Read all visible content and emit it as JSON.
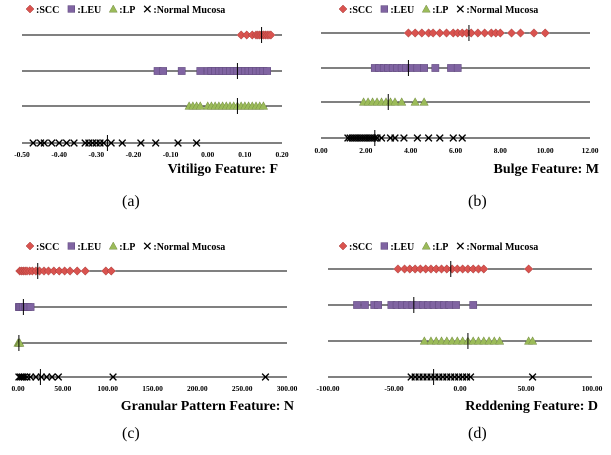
{
  "colors": {
    "SCC": "#d9534f",
    "LEU": "#8064a2",
    "LP": "#9bbb59",
    "Normal": "#000000"
  },
  "panels": [
    {
      "caption": "(a)"
    },
    {
      "caption": "(b)"
    },
    {
      "caption": "(c)"
    },
    {
      "caption": "(d)"
    }
  ],
  "chart_data": [
    {
      "type": "scatter",
      "title": "Vitiligo Feature: F",
      "xlim": [
        -0.5,
        0.2
      ],
      "ticks": [
        "-0.50",
        "-0.40",
        "-0.30",
        "-0.20",
        "-0.10",
        "0.00",
        "0.10",
        "0.20"
      ],
      "legend": [
        {
          "name": ":SCC",
          "marker": "diamond",
          "color": "#d9534f"
        },
        {
          "name": ":LEU",
          "marker": "square",
          "color": "#8064a2"
        },
        {
          "name": ":LP",
          "marker": "triangle",
          "color": "#9bbb59"
        },
        {
          "name": ":Normal Mucosa",
          "marker": "x",
          "color": "#000000"
        }
      ],
      "series": [
        {
          "name": "SCC",
          "marker": "diamond",
          "color": "#d9534f",
          "mean": 0.145,
          "values": [
            0.09,
            0.105,
            0.12,
            0.13,
            0.135,
            0.14,
            0.145,
            0.15,
            0.155,
            0.16,
            0.165,
            0.17
          ]
        },
        {
          "name": "LEU",
          "marker": "square",
          "color": "#8064a2",
          "mean": 0.08,
          "values": [
            -0.135,
            -0.12,
            -0.07,
            -0.02,
            0.0,
            0.01,
            0.02,
            0.03,
            0.04,
            0.05,
            0.06,
            0.07,
            0.08,
            0.09,
            0.1,
            0.11,
            0.12,
            0.13,
            0.14,
            0.15,
            0.16
          ]
        },
        {
          "name": "LP",
          "marker": "triangle",
          "color": "#9bbb59",
          "mean": 0.08,
          "values": [
            -0.05,
            -0.04,
            -0.03,
            -0.02,
            0.0,
            0.01,
            0.02,
            0.03,
            0.04,
            0.05,
            0.06,
            0.07,
            0.08,
            0.09,
            0.1,
            0.11,
            0.12,
            0.13,
            0.14,
            0.15
          ]
        },
        {
          "name": "Normal Mucosa",
          "marker": "x",
          "color": "#000000",
          "mean": -0.27,
          "values": [
            -0.47,
            -0.45,
            -0.44,
            -0.42,
            -0.4,
            -0.38,
            -0.36,
            -0.33,
            -0.32,
            -0.31,
            -0.3,
            -0.29,
            -0.28,
            -0.26,
            -0.23,
            -0.18,
            -0.14,
            -0.08,
            -0.03
          ]
        }
      ]
    },
    {
      "type": "scatter",
      "title": "Bulge Feature: M",
      "xlim": [
        0,
        12
      ],
      "ticks": [
        "0.00",
        "2.00",
        "4.00",
        "6.00",
        "8.00",
        "10.00",
        "12.00"
      ],
      "legend": [
        {
          "name": ":SCC",
          "marker": "diamond",
          "color": "#d9534f"
        },
        {
          "name": ":LEU",
          "marker": "square",
          "color": "#8064a2"
        },
        {
          "name": ":LP",
          "marker": "triangle",
          "color": "#9bbb59"
        },
        {
          "name": ":Normal Mucosa",
          "marker": "x",
          "color": "#000000"
        }
      ],
      "series": [
        {
          "name": "SCC",
          "marker": "diamond",
          "color": "#d9534f",
          "mean": 6.6,
          "values": [
            3.9,
            4.2,
            4.5,
            4.8,
            5.0,
            5.3,
            5.6,
            5.9,
            6.1,
            6.3,
            6.5,
            6.7,
            7.0,
            7.3,
            7.6,
            7.8,
            8.0,
            8.5,
            8.9,
            9.5,
            10.0
          ]
        },
        {
          "name": "LEU",
          "marker": "square",
          "color": "#8064a2",
          "mean": 3.9,
          "values": [
            2.4,
            2.6,
            2.8,
            3.0,
            3.2,
            3.4,
            3.6,
            3.8,
            4.0,
            4.3,
            4.6,
            5.1,
            5.8,
            6.1
          ]
        },
        {
          "name": "LP",
          "marker": "triangle",
          "color": "#9bbb59",
          "mean": 3.0,
          "values": [
            1.9,
            2.1,
            2.3,
            2.5,
            2.7,
            2.9,
            3.1,
            3.3,
            3.6,
            4.2,
            4.6
          ]
        },
        {
          "name": "Normal Mucosa",
          "marker": "x",
          "color": "#000000",
          "mean": 2.4,
          "values": [
            1.2,
            1.3,
            1.4,
            1.5,
            1.6,
            1.7,
            1.8,
            1.9,
            2.0,
            2.1,
            2.2,
            2.3,
            2.4,
            2.5,
            2.7,
            3.1,
            3.3,
            3.7,
            4.3,
            4.8,
            5.3,
            5.9,
            6.3
          ]
        }
      ]
    },
    {
      "type": "scatter",
      "title": "Granular Pattern Feature: N",
      "xlim": [
        0,
        300
      ],
      "ticks": [
        "0.00",
        "50.00",
        "100.00",
        "150.00",
        "200.00",
        "250.00",
        "300.00"
      ],
      "legend": [
        {
          "name": ":SCC",
          "marker": "diamond",
          "color": "#d9534f"
        },
        {
          "name": ":LEU",
          "marker": "square",
          "color": "#8064a2"
        },
        {
          "name": ":LP",
          "marker": "triangle",
          "color": "#9bbb59"
        },
        {
          "name": ":Normal Mucosa",
          "marker": "x",
          "color": "#000000"
        }
      ],
      "series": [
        {
          "name": "SCC",
          "marker": "diamond",
          "color": "#d9534f",
          "mean": 22,
          "values": [
            2,
            4,
            6,
            8,
            10,
            13,
            16,
            20,
            24,
            29,
            34,
            40,
            46,
            52,
            58,
            66,
            75,
            98,
            104
          ]
        },
        {
          "name": "LEU",
          "marker": "square",
          "color": "#8064a2",
          "mean": 6,
          "values": [
            1,
            2,
            4,
            6,
            8,
            11,
            14
          ]
        },
        {
          "name": "LP",
          "marker": "triangle",
          "color": "#9bbb59",
          "mean": 1,
          "values": [
            0,
            1,
            1.5,
            2
          ]
        },
        {
          "name": "Normal Mucosa",
          "marker": "x",
          "color": "#000000",
          "mean": 25,
          "values": [
            1,
            3,
            5,
            7,
            10,
            14,
            20,
            26,
            32,
            38,
            45,
            106,
            276
          ]
        }
      ]
    },
    {
      "type": "scatter",
      "title": "Reddening Feature: D",
      "xlim": [
        -100,
        100
      ],
      "ticks": [
        "-100.00",
        "-50.00",
        "0.00",
        "50.00",
        "100.00"
      ],
      "legend": [
        {
          "name": ":SCC",
          "marker": "diamond",
          "color": "#d9534f"
        },
        {
          "name": ":LEU",
          "marker": "square",
          "color": "#8064a2"
        },
        {
          "name": ":LP",
          "marker": "triangle",
          "color": "#9bbb59"
        },
        {
          "name": ":Normal Mucosa",
          "marker": "x",
          "color": "#000000"
        }
      ],
      "series": [
        {
          "name": "SCC",
          "marker": "diamond",
          "color": "#d9534f",
          "mean": -7,
          "values": [
            -47,
            -42,
            -38,
            -34,
            -30,
            -26,
            -22,
            -18,
            -14,
            -10,
            -6,
            -2,
            2,
            6,
            10,
            14,
            18,
            52
          ]
        },
        {
          "name": "LEU",
          "marker": "square",
          "color": "#8064a2",
          "mean": -35,
          "values": [
            -78,
            -72,
            -65,
            -62,
            -52,
            -48,
            -44,
            -40,
            -36,
            -32,
            -28,
            -24,
            -20,
            -16,
            -12,
            -8,
            -3,
            10
          ]
        },
        {
          "name": "LP",
          "marker": "triangle",
          "color": "#9bbb59",
          "mean": 6,
          "values": [
            -27,
            -22,
            -18,
            -14,
            -10,
            -6,
            -2,
            2,
            6,
            10,
            14,
            18,
            22,
            26,
            30,
            52,
            55
          ]
        },
        {
          "name": "Normal Mucosa",
          "marker": "x",
          "color": "#000000",
          "mean": -20,
          "values": [
            -37,
            -34,
            -31,
            -28,
            -25,
            -22,
            -19,
            -16,
            -13,
            -10,
            -7,
            -4,
            -1,
            2,
            5,
            8,
            55
          ]
        }
      ]
    }
  ]
}
